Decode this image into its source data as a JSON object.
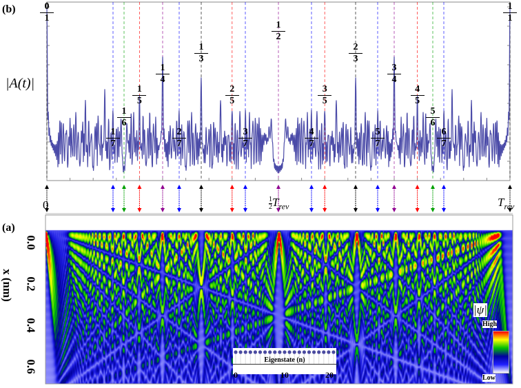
{
  "panel_b": {
    "label": "(b)",
    "ylabel": "|A(t)|",
    "xtick_labels": {
      "zero": "0",
      "half_coef": "1",
      "half_den": "2",
      "half_sym": "T",
      "half_sub": "rev",
      "full_sym": "T",
      "full_sub": "rev"
    }
  },
  "panel_a": {
    "label": "(a)",
    "ylabel": "x (nm)",
    "yticks": [
      "0.0",
      "0.2",
      "0.4",
      "0.6"
    ],
    "colorbar": {
      "title": "|ψ|",
      "high": "High",
      "low": "Low",
      "colors": [
        "#ffffff",
        "#2020ff",
        "#0000a0",
        "#00c000",
        "#ffff00",
        "#ff0000"
      ]
    },
    "inset": {
      "xlabel": "Eigenstate (n)",
      "xticks": [
        "0",
        "10",
        "20"
      ],
      "n_min": 0,
      "n_max": 20,
      "dot_color": "#4a4aa0"
    }
  },
  "chart_data": [
    {
      "type": "line",
      "title": "",
      "xlabel": "",
      "ylabel": "|A(t)|",
      "xlim": [
        0,
        1
      ],
      "x_unit": "T_rev",
      "line_color": "#4b4ba8",
      "fractional_revivals": [
        {
          "num": "0",
          "den": "1",
          "t": 0,
          "color": "#000000"
        },
        {
          "num": "1",
          "den": "7",
          "t": 0.142857,
          "color": "#0000ff"
        },
        {
          "num": "1",
          "den": "6",
          "t": 0.166667,
          "color": "#00a000"
        },
        {
          "num": "1",
          "den": "5",
          "t": 0.2,
          "color": "#ff0000"
        },
        {
          "num": "1",
          "den": "4",
          "t": 0.25,
          "color": "#900090"
        },
        {
          "num": "2",
          "den": "7",
          "t": 0.285714,
          "color": "#0000ff"
        },
        {
          "num": "1",
          "den": "3",
          "t": 0.333333,
          "color": "#000000"
        },
        {
          "num": "2",
          "den": "5",
          "t": 0.4,
          "color": "#ff0000"
        },
        {
          "num": "3",
          "den": "7",
          "t": 0.428571,
          "color": "#0000ff"
        },
        {
          "num": "1",
          "den": "2",
          "t": 0.5,
          "color": "#900090"
        },
        {
          "num": "4",
          "den": "7",
          "t": 0.571429,
          "color": "#0000ff"
        },
        {
          "num": "3",
          "den": "5",
          "t": 0.6,
          "color": "#ff0000"
        },
        {
          "num": "2",
          "den": "3",
          "t": 0.666667,
          "color": "#000000"
        },
        {
          "num": "5",
          "den": "7",
          "t": 0.714286,
          "color": "#0000ff"
        },
        {
          "num": "3",
          "den": "4",
          "t": 0.75,
          "color": "#900090"
        },
        {
          "num": "4",
          "den": "5",
          "t": 0.8,
          "color": "#ff0000"
        },
        {
          "num": "5",
          "den": "6",
          "t": 0.833333,
          "color": "#00a000"
        },
        {
          "num": "6",
          "den": "7",
          "t": 0.857143,
          "color": "#0000ff"
        },
        {
          "num": "1",
          "den": "1",
          "t": 1,
          "color": "#000000"
        }
      ]
    },
    {
      "type": "heatmap",
      "xlabel": "",
      "ylabel": "x (nm)",
      "ylim": [
        -0.1,
        0.75
      ],
      "xlim": [
        0,
        1
      ],
      "colorbar": "|ψ|"
    }
  ]
}
